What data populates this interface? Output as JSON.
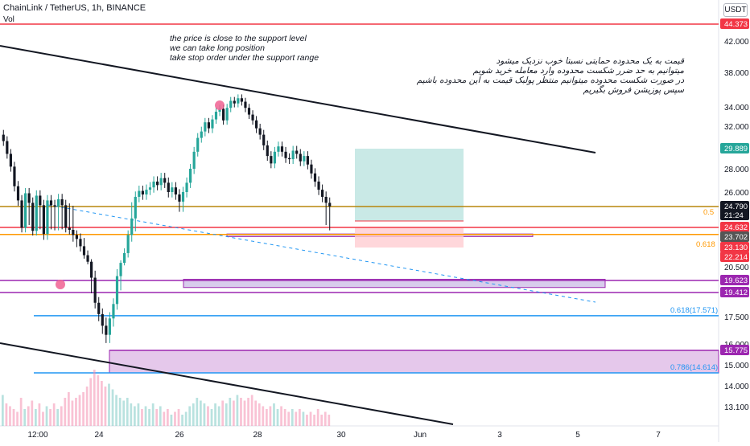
{
  "header": {
    "symbol_line": "ChainLink / TetherUS, 1h, BINANCE",
    "indicator": "Vol",
    "unit": "USDT"
  },
  "annotations": {
    "english": [
      "the price is close to the support level",
      "we can take long position",
      "take stop order under the support range"
    ],
    "persian": [
      "قیمت به یک محدوده حمایتی نسبتا خوب نزدیک میشود",
      "میتوانیم به حد ضرر شکست محدوده وارد معامله خرید شویم",
      "در صورت شکست محدوده میتوانیم منتظر پولبک قیمت به این محدوده باشیم",
      "سپس پوزیشن فروش بگیریم"
    ]
  },
  "colors": {
    "up": "#26a69a",
    "down": "#131722",
    "red_line": "#f23645",
    "purple": "#9c27b0",
    "blue": "#2196f3",
    "orange": "#ff9800",
    "target_fill": "#b2dfdb",
    "stop_fill": "#ffcdd2"
  },
  "chart_data": {
    "type": "candlestick",
    "x_ticks": [
      "12:00",
      "24",
      "26",
      "28",
      "30",
      "Jun",
      "3",
      "5",
      "7"
    ],
    "y_ticks": [
      13.1,
      14.0,
      15.0,
      16.0,
      17.5,
      20.5,
      22.214,
      26.0,
      28.0,
      32.0,
      34.0,
      38.0,
      42.0
    ],
    "y_tick_labels": [
      "13.100",
      "14.000",
      "15.000",
      "16.000",
      "17.500",
      "20.500",
      "22.214",
      "26.000",
      "28.000",
      "32.000",
      "34.000",
      "38.000",
      "42.000"
    ],
    "price_labels": [
      {
        "value": 44.373,
        "label": "44.373",
        "color": "#f23645"
      },
      {
        "value": 29.889,
        "label": "29.889",
        "color": "#26a69a"
      },
      {
        "value": 24.79,
        "label": "24.790",
        "color": "#131722",
        "sub": "21:24"
      },
      {
        "value": 24.632,
        "label": "24.632",
        "color": "#f23645"
      },
      {
        "value": 23.702,
        "label": "23.702",
        "color": "#555555"
      },
      {
        "value": 23.13,
        "label": "23.130",
        "color": "#f23645"
      },
      {
        "value": 22.214,
        "label": "22.214",
        "color": "#f23645"
      },
      {
        "value": 19.623,
        "label": "19.623",
        "color": "#9c27b0"
      },
      {
        "value": 19.412,
        "label": "19.412",
        "color": "#9c27b0"
      },
      {
        "value": 15.775,
        "label": "15.775",
        "color": "#9c27b0"
      }
    ],
    "fib_labels": [
      {
        "value": 24.79,
        "label": "0.5",
        "color": "#ff9800"
      },
      {
        "value": 23.702,
        "label": "0.618",
        "color": "#ff9800"
      },
      {
        "value": 17.571,
        "label": "0.618(17.571)",
        "color": "#2196f3"
      },
      {
        "value": 14.614,
        "label": "0.786(14.614)",
        "color": "#2196f3"
      }
    ],
    "horizontal_lines": [
      {
        "value": 44.373,
        "color": "#f23645"
      },
      {
        "value": 24.79,
        "color": "#b8860b"
      },
      {
        "value": 24.632,
        "color": "#f23645"
      },
      {
        "value": 23.95,
        "color": "#ff9800"
      },
      {
        "value": 19.623,
        "color": "#9c27b0"
      },
      {
        "value": 19.412,
        "color": "#9c27b0"
      },
      {
        "value": 17.571,
        "color": "#2196f3"
      },
      {
        "value": 15.775,
        "color": "#9c27b0"
      },
      {
        "value": 14.614,
        "color": "#2196f3"
      }
    ],
    "zones": [
      {
        "from": 15.775,
        "to": 14.614,
        "color": "#e1bee7",
        "start_label": "24"
      },
      {
        "from": 24.0,
        "to": 23.75,
        "color": "#d1c4e9"
      },
      {
        "from": 19.7,
        "to": 19.5,
        "color": "#d1c4e9"
      }
    ],
    "position": {
      "entry": 24.79,
      "target": 29.889,
      "stop_top": 24.0,
      "stop": 23.13
    },
    "trendlines": [
      {
        "from": [
          0,
          42.0
        ],
        "to": [
          1,
          29.8
        ]
      },
      {
        "from": [
          0,
          16.3
        ],
        "to": [
          1,
          12.9
        ]
      }
    ],
    "candles_close": [
      30.6,
      29.4,
      28.2,
      26.5,
      25.3,
      24.6,
      25.9,
      25.1,
      24.3,
      25.7,
      24.9,
      24.0,
      25.3,
      24.9,
      24.8,
      25.4,
      24.9,
      24.6,
      24.4,
      23.9,
      23.6,
      23.2,
      22.4,
      21.4,
      19.8,
      18.6,
      17.7,
      17.0,
      16.5,
      17.4,
      18.5,
      19.9,
      21.2,
      22.6,
      23.9,
      24.7,
      25.6,
      26.1,
      25.8,
      26.2,
      26.4,
      26.9,
      26.6,
      27.2,
      26.8,
      26.0,
      26.4,
      25.8,
      25.2,
      26.0,
      26.8,
      28.0,
      29.6,
      30.9,
      31.5,
      32.4,
      31.8,
      32.7,
      33.5,
      33.8,
      32.6,
      33.9,
      34.7,
      34.4,
      35.0,
      34.6,
      33.9,
      33.2,
      32.6,
      31.8,
      31.2,
      30.2,
      29.2,
      28.5,
      29.6,
      30.1,
      29.6,
      29.0,
      28.9,
      29.7,
      29.4,
      28.7,
      29.2,
      28.4,
      27.6,
      26.9,
      26.2,
      25.6,
      25.1,
      24.8
    ],
    "volume": [
      0.55,
      0.4,
      0.35,
      0.3,
      0.25,
      0.5,
      0.3,
      0.35,
      0.45,
      0.3,
      0.4,
      0.25,
      0.35,
      0.3,
      0.4,
      0.3,
      0.35,
      0.5,
      0.6,
      0.45,
      0.5,
      0.55,
      0.6,
      0.7,
      0.85,
      1.0,
      0.9,
      0.8,
      0.7,
      0.75,
      0.65,
      0.55,
      0.5,
      0.45,
      0.5,
      0.4,
      0.35,
      0.4,
      0.3,
      0.35,
      0.3,
      0.4,
      0.3,
      0.35,
      0.25,
      0.3,
      0.2,
      0.25,
      0.3,
      0.2,
      0.25,
      0.35,
      0.4,
      0.5,
      0.45,
      0.4,
      0.35,
      0.3,
      0.4,
      0.35,
      0.45,
      0.4,
      0.5,
      0.45,
      0.55,
      0.5,
      0.45,
      0.5,
      0.55,
      0.45,
      0.4,
      0.35,
      0.3,
      0.35,
      0.4,
      0.3,
      0.35,
      0.3,
      0.25,
      0.3,
      0.25,
      0.3,
      0.25,
      0.2,
      0.25,
      0.2,
      0.3,
      0.2,
      0.25,
      0.2
    ]
  }
}
